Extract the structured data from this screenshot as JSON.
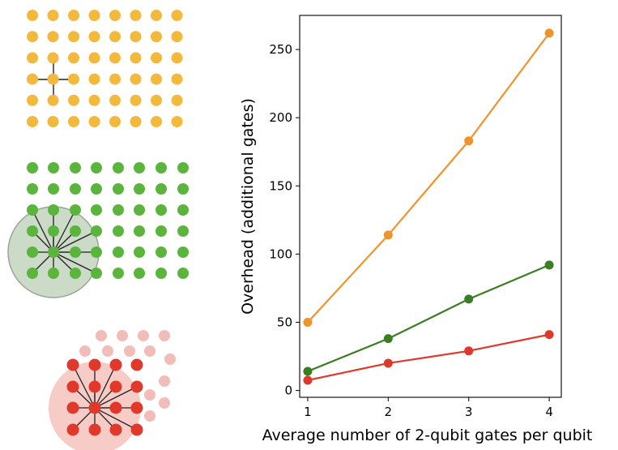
{
  "chart_data": {
    "type": "line",
    "title": "",
    "xlabel": "Average number of 2-qubit gates per qubit",
    "ylabel": "Overhead (additional gates)",
    "x": [
      1,
      2,
      3,
      4
    ],
    "xlim": [
      0.9,
      4.15
    ],
    "ylim": [
      -5,
      275
    ],
    "xticks": [
      1,
      2,
      3,
      4
    ],
    "yticks": [
      0,
      50,
      100,
      150,
      200,
      250
    ],
    "grid": false,
    "legend": "none",
    "series": [
      {
        "color": "#f0932b",
        "values": [
          50,
          114,
          183,
          262
        ]
      },
      {
        "color": "#3a7d22",
        "values": [
          14,
          38,
          67,
          92
        ]
      },
      {
        "color": "#e0392b",
        "values": [
          7.5,
          20,
          29,
          41
        ]
      }
    ]
  },
  "diagrams": {
    "square_lattice": {
      "dot_color": "#f2b93c",
      "edge_color": "#222222"
    },
    "dense_lattice": {
      "dot_color": "#5bb53c",
      "halo_color": "#8fae86",
      "edge_color": "#222222"
    },
    "triangular_lattice": {
      "dot_color": "#e0392b",
      "faded_color": "#f2bcb8",
      "halo_color": "#f4b9b3",
      "edge_color": "#222222"
    }
  }
}
